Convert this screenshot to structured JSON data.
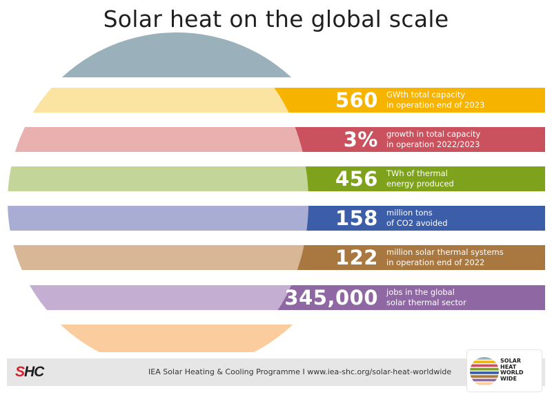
{
  "title": "Solar heat on the global scale",
  "stats": [
    {
      "value": "560",
      "desc": "GWth total capacity\nin operation end of 2023",
      "light": "#fbe3a1",
      "dark": "#f6b300"
    },
    {
      "value": "3%",
      "desc": "growth in total capacity\nin operation 2022/2023",
      "light": "#e9b0b0",
      "dark": "#c9525e"
    },
    {
      "value": "456",
      "desc": "TWh of thermal\nenergy produced",
      "light": "#c3d598",
      "dark": "#7ea21b"
    },
    {
      "value": "158",
      "desc": "million tons\nof CO2 avoided",
      "light": "#a9add4",
      "dark": "#3c5ea8"
    },
    {
      "value": "122",
      "desc": "million solar thermal systems\nin operation end of 2022",
      "light": "#d7b796",
      "dark": "#a97841"
    },
    {
      "value": "345,000",
      "desc": "jobs in the global\nsolar thermal sector",
      "light": "#c4aed2",
      "dark": "#8f68a3"
    }
  ],
  "top_cap_color": "#9ab1bc",
  "bottom_cap_color": "#fbcc9d",
  "footer": {
    "logo_part1": "S",
    "logo_part2": "HC",
    "text": "IEA Solar Heating & Cooling Programme I www.iea-shc.org/solar-heat-worldwide",
    "badge": "SOLAR\nHEAT\nWORLD\nWIDE"
  }
}
